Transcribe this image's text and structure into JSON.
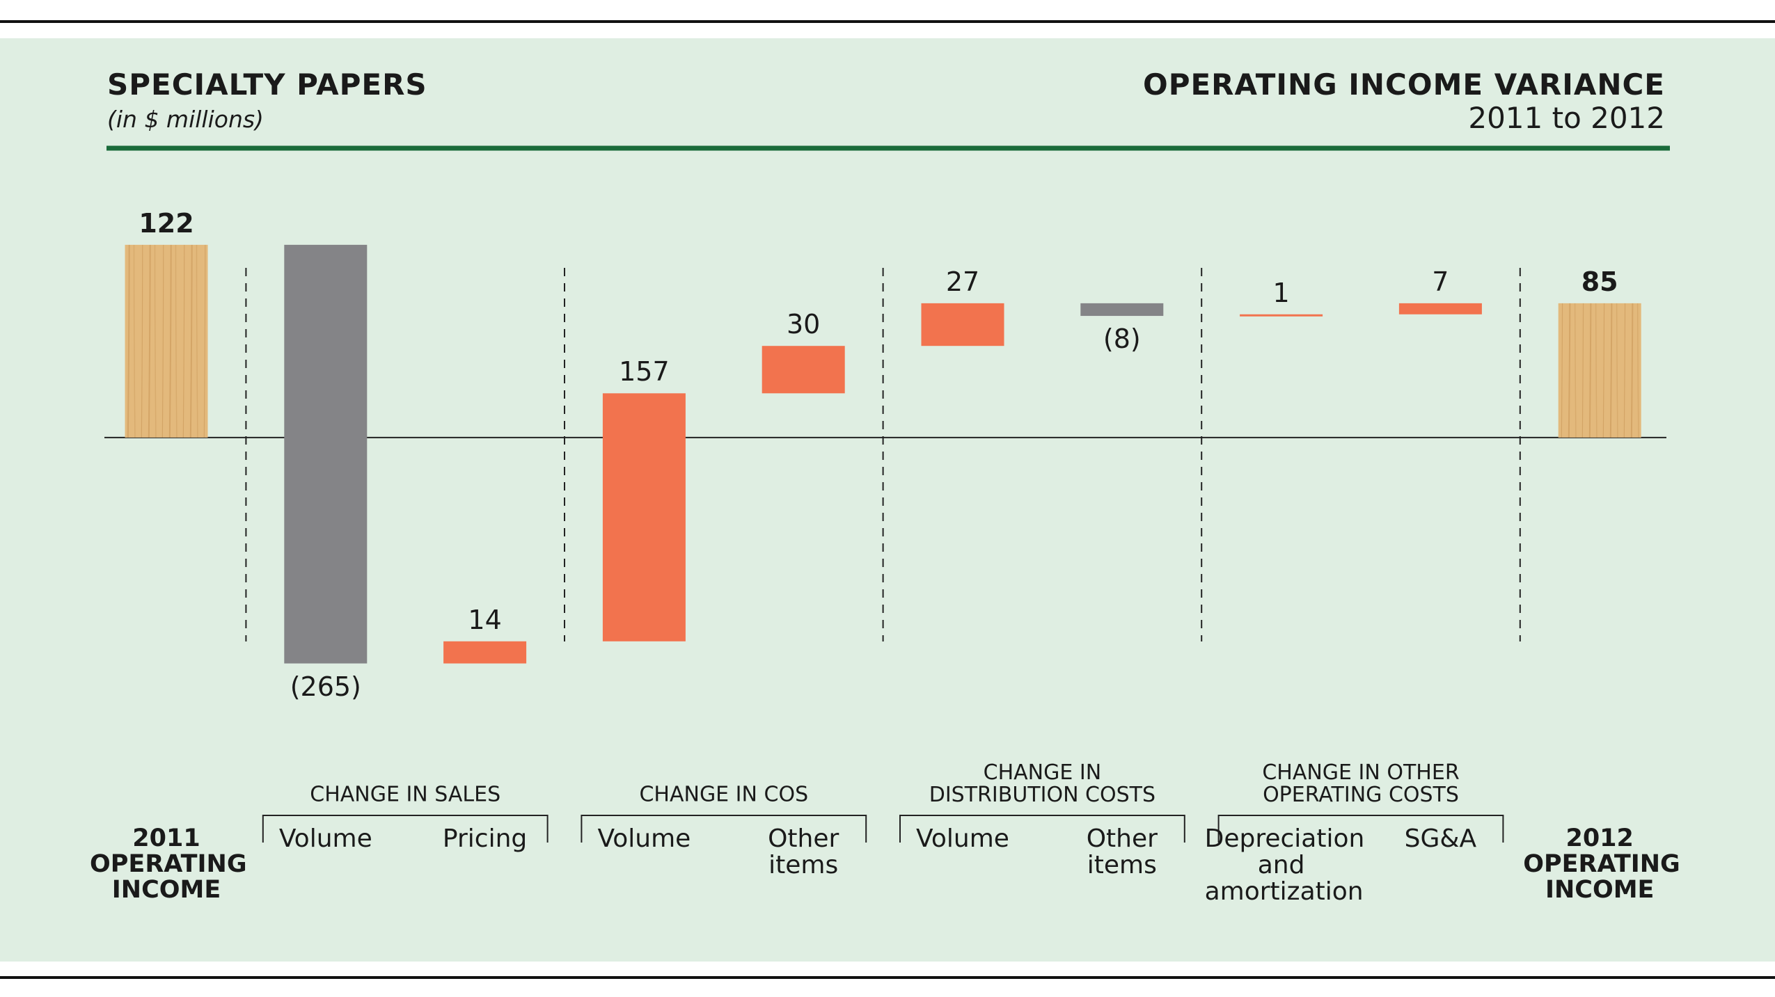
{
  "chart_data": {
    "type": "waterfall",
    "title": "SPECIALTY PAPERS",
    "subtitle": "(in $ millions)",
    "right_title": "OPERATING INCOME VARIANCE",
    "right_subtitle": "2011 to 2012",
    "categories": [
      "2011\nOPERATING\nINCOME",
      "Volume",
      "Pricing",
      "Volume",
      "Other\nitems",
      "Volume",
      "Other\nitems",
      "Depreciation\nand\namortization",
      "SG&A",
      "2012\nOPERATING\nINCOME"
    ],
    "groups": [
      "CHANGE IN SALES",
      "CHANGE IN COS",
      "CHANGE IN\nDISTRIBUTION COSTS",
      "CHANGE IN OTHER\nOPERATING COSTS"
    ],
    "values": [
      122,
      -265,
      14,
      157,
      30,
      27,
      -8,
      1,
      7,
      85
    ],
    "value_labels": [
      "122",
      "(265)",
      "14",
      "157",
      "30",
      "27",
      "(8)",
      "1",
      "7",
      "85"
    ],
    "measure": [
      "total",
      "relative",
      "relative",
      "relative",
      "relative",
      "relative",
      "relative",
      "relative",
      "relative",
      "total"
    ],
    "positive_color": "#f2734e",
    "negative_color": "#848487",
    "total_color": "#e3b97c",
    "ylim": [
      -200,
      140
    ]
  }
}
